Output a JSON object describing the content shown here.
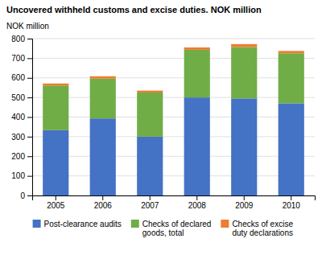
{
  "chart_data": {
    "type": "bar",
    "stacked": true,
    "title": "Uncovered withheld customs and excise duties. NOK million",
    "ylabel": "NOK million",
    "categories": [
      "2005",
      "2006",
      "2007",
      "2008",
      "2009",
      "2010"
    ],
    "series": [
      {
        "name": "Post-clearance audits",
        "color": "#4472C4",
        "values": [
          333,
          393,
          300,
          500,
          495,
          470
        ]
      },
      {
        "name": "Checks of declared\ngoods, total",
        "color": "#70AD47",
        "values": [
          228,
          203,
          225,
          243,
          262,
          255
        ]
      },
      {
        "name": "Checks of excise\nduty declarations",
        "color": "#ED7D31",
        "values": [
          10,
          12,
          10,
          12,
          15,
          12
        ]
      }
    ],
    "ylim": [
      0,
      800
    ],
    "yticks": [
      0,
      100,
      200,
      300,
      400,
      500,
      600,
      700,
      800
    ],
    "grid": true,
    "legend": "bottom"
  }
}
